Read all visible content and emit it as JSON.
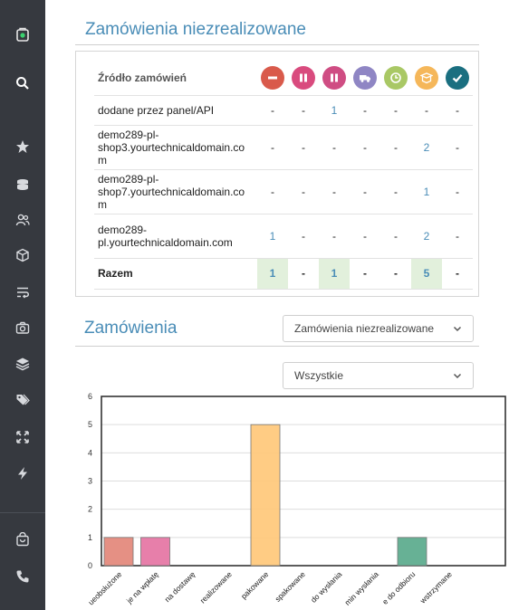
{
  "sidebar": {
    "icons": [
      "bag-logo-icon",
      "search-icon",
      "star-icon",
      "coins-icon",
      "users-icon",
      "cube-icon",
      "wrap-icon",
      "camera-icon",
      "layers-icon",
      "tags-icon",
      "move-icon",
      "bolt-icon",
      "basket-icon",
      "phone-icon"
    ]
  },
  "section1": {
    "title": "Zamówienia niezrealizowane",
    "source_header": "Źródło zamówień",
    "status_icons": [
      {
        "name": "status-minus-icon",
        "color": "#d95a4b"
      },
      {
        "name": "status-pause-icon",
        "color": "#d94b7e"
      },
      {
        "name": "status-pause-icon",
        "color": "#cf4d83"
      },
      {
        "name": "status-truck-icon",
        "color": "#8f86c4"
      },
      {
        "name": "status-clock-icon",
        "color": "#a9c865"
      },
      {
        "name": "status-box-icon",
        "color": "#f5b75a"
      },
      {
        "name": "status-check-icon",
        "color": "#1a6f80"
      }
    ],
    "rows": [
      {
        "source": "dodane przez panel/API",
        "values": [
          "-",
          "-",
          "1",
          "-",
          "-",
          "-",
          "-"
        ]
      },
      {
        "source": "demo289-pl-shop3.yourtechnicaldomain.com",
        "values": [
          "-",
          "-",
          "-",
          "-",
          "-",
          "2",
          "-"
        ]
      },
      {
        "source": "demo289-pl-shop7.yourtechnicaldomain.com",
        "values": [
          "-",
          "-",
          "-",
          "-",
          "-",
          "1",
          "-"
        ]
      },
      {
        "source": "demo289-pl.yourtechnicaldomain.com",
        "values": [
          "1",
          "-",
          "-",
          "-",
          "-",
          "2",
          "-"
        ]
      }
    ],
    "total": {
      "label": "Razem",
      "values": [
        "1",
        "-",
        "1",
        "-",
        "-",
        "5",
        "-"
      ]
    }
  },
  "section2": {
    "title": "Zamówienia",
    "select_type": "Zamówienia niezrealizowane",
    "select_filter": "Wszystkie"
  },
  "chart_data": {
    "type": "bar",
    "categories": [
      "nieobsłużone",
      "oczekuje na wpłatę",
      "oczekuje na dostawę",
      "realizowane",
      "pakowane",
      "spakowane",
      "gotowe do wysłania",
      "termin wysłania",
      "gotowe do odbioru",
      "wstrzymane"
    ],
    "tick_labels": [
      "ueobsłużone",
      "je na wpłatę",
      "na dostawę",
      "realizowane",
      "pakowane",
      "spakowane",
      "do wysłania",
      "min wysłania",
      "e do odbioru",
      "wstrzymane"
    ],
    "values": [
      1,
      1,
      0,
      0,
      5,
      0,
      0,
      0,
      1,
      0
    ],
    "colors": [
      "#e3877a",
      "#e574a3",
      "#999999",
      "#999999",
      "#ffc87a",
      "#999999",
      "#999999",
      "#999999",
      "#5aaa8c",
      "#999999"
    ],
    "ylim": [
      0,
      6
    ],
    "yticks": [
      "0",
      "1",
      "2",
      "3",
      "4",
      "5",
      "6"
    ],
    "grid": true
  }
}
